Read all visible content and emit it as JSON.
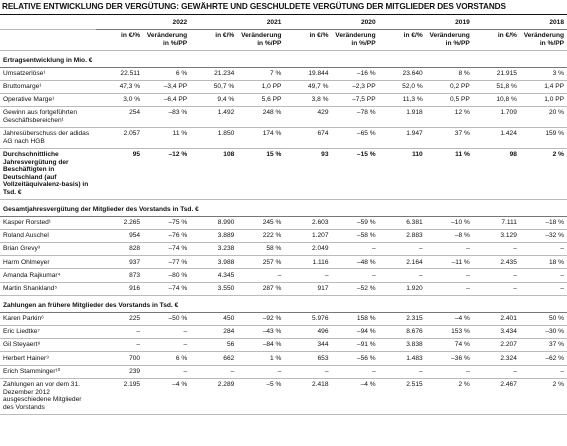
{
  "title": "RELATIVE ENTWICKLUNG DER VERGÜTUNG: GEWÄHRTE UND GESCHULDETE VERGÜTUNG DER MITGLIEDER DES VORSTANDS",
  "years": [
    "2022",
    "2021",
    "2020",
    "2019",
    "2018"
  ],
  "subheaders": [
    "in €/%",
    "Veränderung in %/PP"
  ],
  "sections": [
    {
      "title": "Ertragsentwicklung in Mio. €",
      "rows": [
        {
          "label": "Umsatzerlöse¹",
          "cells": [
            "22.511",
            "6 %",
            "21.234",
            "7 %",
            "19.844",
            "–16 %",
            "23.640",
            "8 %",
            "21.915",
            "3 %"
          ]
        },
        {
          "label": "Bruttomarge¹",
          "cells": [
            "47,3 %",
            "–3,4 PP",
            "50,7 %",
            "1,0 PP",
            "49,7 %",
            "–2,3 PP",
            "52,0 %",
            "0,2 PP",
            "51,8 %",
            "1,4 PP"
          ]
        },
        {
          "label": "Operative Marge¹",
          "cells": [
            "3,0 %",
            "–6,4 PP",
            "9,4 %",
            "5,6 PP",
            "3,8 %",
            "–7,5 PP",
            "11,3 %",
            "0,5 PP",
            "10,8 %",
            "1,0 PP"
          ]
        },
        {
          "label": "Gewinn aus fortgeführten Geschäftsbereichen¹",
          "cells": [
            "254",
            "–83 %",
            "1.492",
            "248 %",
            "429",
            "–78 %",
            "1.918",
            "12 %",
            "1.709",
            "20 %"
          ]
        },
        {
          "label": "Jahresüberschuss der adidas AG nach HGB",
          "cells": [
            "2.057",
            "11 %",
            "1.850",
            "174 %",
            "674",
            "–65 %",
            "1.947",
            "37 %",
            "1.424",
            "159 %"
          ]
        },
        {
          "label": "Durchschnittliche Jahresvergütung der Beschäftigten in Deutschland (auf Vollzeitäquivalenz-basis) in Tsd. €",
          "cells": [
            "95",
            "–12 %",
            "108",
            "15 %",
            "93",
            "–15 %",
            "110",
            "11 %",
            "98",
            "2 %"
          ]
        }
      ]
    },
    {
      "title": "Gesamtjahresvergütung der Mitglieder des Vorstands in Tsd. €",
      "rows": [
        {
          "label": "Kasper Rorsted¹",
          "cells": [
            "2.265",
            "–75 %",
            "8.990",
            "245 %",
            "2.603",
            "–59 %",
            "6.381",
            "–10 %",
            "7.111",
            "–18 %"
          ]
        },
        {
          "label": "Roland Auschel",
          "cells": [
            "954",
            "–76 %",
            "3.889",
            "222 %",
            "1.207",
            "–58 %",
            "2.883",
            "–8 %",
            "3.129",
            "–32 %"
          ]
        },
        {
          "label": "Brian Grevy³",
          "cells": [
            "828",
            "–74 %",
            "3.238",
            "58 %",
            "2.049",
            "–",
            "–",
            "–",
            "–",
            "–"
          ]
        },
        {
          "label": "Harm Ohlmeyer",
          "cells": [
            "937",
            "–77 %",
            "3.988",
            "257 %",
            "1.116",
            "–48 %",
            "2.164",
            "–11 %",
            "2.435",
            "18 %"
          ]
        },
        {
          "label": "Amanda Rajkumar⁴",
          "cells": [
            "873",
            "–80 %",
            "4.345",
            "–",
            "–",
            "–",
            "–",
            "–",
            "–",
            "–"
          ]
        },
        {
          "label": "Martin Shankland⁵",
          "cells": [
            "916",
            "–74 %",
            "3.550",
            "287 %",
            "917",
            "–52 %",
            "1.920",
            "–",
            "–",
            "–"
          ]
        }
      ]
    },
    {
      "title": "Zahlungen an frühere Mitglieder des Vorstands in Tsd. €",
      "rows": [
        {
          "label": "Karen Parkin⁶",
          "cells": [
            "225",
            "–50 %",
            "450",
            "–92 %",
            "5.976",
            "158 %",
            "2.315",
            "–4 %",
            "2.401",
            "50 %"
          ]
        },
        {
          "label": "Eric Liedtke⁷",
          "cells": [
            "–",
            "–",
            "284",
            "–43 %",
            "496",
            "–94 %",
            "8.676",
            "153 %",
            "3.434",
            "–30 %"
          ]
        },
        {
          "label": "Gil Steyaert⁸",
          "cells": [
            "–",
            "–",
            "56",
            "–84 %",
            "344",
            "–91 %",
            "3.838",
            "74 %",
            "2.207",
            "37 %"
          ]
        },
        {
          "label": "Herbert Hainer⁹",
          "cells": [
            "700",
            "6 %",
            "662",
            "1 %",
            "653",
            "–56 %",
            "1.483",
            "–36 %",
            "2.324",
            "–62 %"
          ]
        },
        {
          "label": "Erich Stamminger¹⁰",
          "cells": [
            "239",
            "–",
            "–",
            "–",
            "–",
            "–",
            "–",
            "–",
            "–",
            "–"
          ]
        },
        {
          "label": "Zahlungen an vor dem 31. Dezember 2012 ausgeschiedene Mitglieder des Vorstands",
          "cells": [
            "2.195",
            "–4 %",
            "2.289",
            "–5 %",
            "2.418",
            "–4 %",
            "2.515",
            "2 %",
            "2.467",
            "2 %"
          ]
        }
      ]
    }
  ]
}
